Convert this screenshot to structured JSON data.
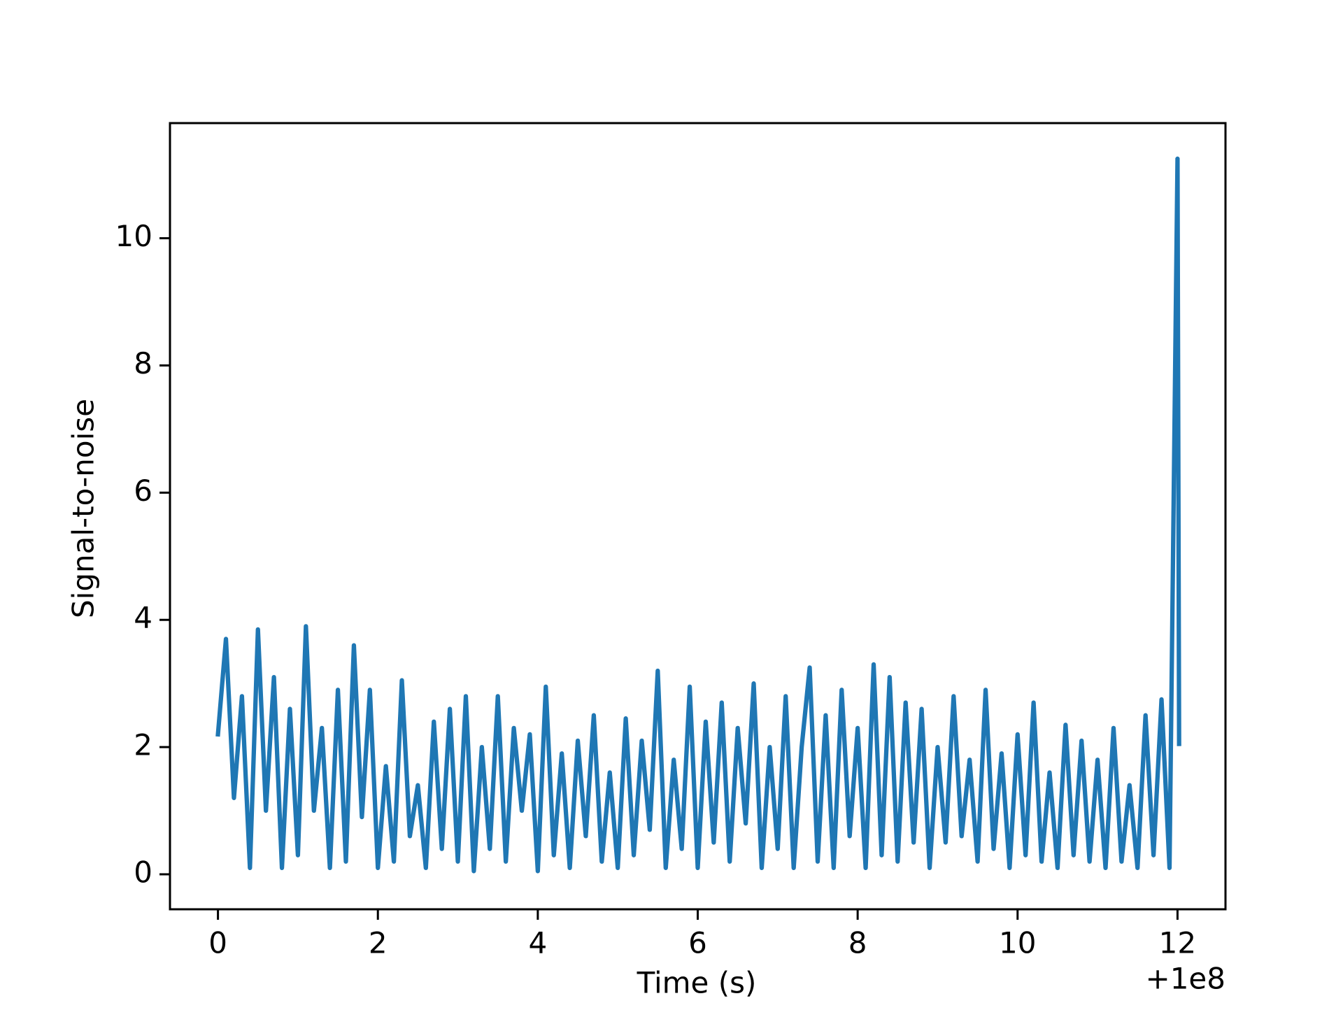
{
  "chart_data": {
    "type": "line",
    "xlabel": "Time (s)",
    "ylabel": "Signal-to-noise",
    "x_offset_text": "+1e8",
    "x": [
      0.0,
      0.1,
      0.2,
      0.3,
      0.4,
      0.5,
      0.6,
      0.7,
      0.8,
      0.9,
      1.0,
      1.1,
      1.2,
      1.3,
      1.4,
      1.5,
      1.6,
      1.7,
      1.8,
      1.9,
      2.0,
      2.1,
      2.2,
      2.3,
      2.4,
      2.5,
      2.6,
      2.7,
      2.8,
      2.9,
      3.0,
      3.1,
      3.2,
      3.3,
      3.4,
      3.5,
      3.6,
      3.7,
      3.8,
      3.9,
      4.0,
      4.1,
      4.2,
      4.3,
      4.4,
      4.5,
      4.6,
      4.7,
      4.8,
      4.9,
      5.0,
      5.1,
      5.2,
      5.3,
      5.4,
      5.5,
      5.6,
      5.7,
      5.8,
      5.9,
      6.0,
      6.1,
      6.2,
      6.3,
      6.4,
      6.5,
      6.6,
      6.7,
      6.8,
      6.9,
      7.0,
      7.1,
      7.2,
      7.3,
      7.4,
      7.5,
      7.6,
      7.7,
      7.8,
      7.9,
      8.0,
      8.1,
      8.2,
      8.3,
      8.4,
      8.5,
      8.6,
      8.7,
      8.8,
      8.9,
      9.0,
      9.1,
      9.2,
      9.3,
      9.4,
      9.5,
      9.6,
      9.7,
      9.8,
      9.9,
      10.0,
      10.1,
      10.2,
      10.3,
      10.4,
      10.5,
      10.6,
      10.7,
      10.8,
      10.9,
      11.0,
      11.1,
      11.2,
      11.3,
      11.4,
      11.5,
      11.6,
      11.7,
      11.8,
      11.9,
      12.0,
      12.02
    ],
    "series": [
      {
        "color": "#1f77b4",
        "values": [
          2.2,
          3.7,
          1.2,
          2.8,
          0.1,
          3.85,
          1.0,
          3.1,
          0.1,
          2.6,
          0.3,
          3.9,
          1.0,
          2.3,
          0.1,
          2.9,
          0.2,
          3.6,
          0.9,
          2.9,
          0.1,
          1.7,
          0.2,
          3.05,
          0.6,
          1.4,
          0.1,
          2.4,
          0.4,
          2.6,
          0.2,
          2.8,
          0.05,
          2.0,
          0.4,
          2.8,
          0.2,
          2.3,
          1.0,
          2.2,
          0.05,
          2.95,
          0.3,
          1.9,
          0.1,
          2.1,
          0.6,
          2.5,
          0.2,
          1.6,
          0.1,
          2.45,
          0.3,
          2.1,
          0.7,
          3.2,
          0.1,
          1.8,
          0.4,
          2.95,
          0.1,
          2.4,
          0.5,
          2.7,
          0.2,
          2.3,
          0.8,
          3.0,
          0.1,
          2.0,
          0.4,
          2.8,
          0.1,
          2.0,
          3.25,
          0.2,
          2.5,
          0.1,
          2.9,
          0.6,
          2.3,
          0.1,
          3.3,
          0.3,
          3.1,
          0.2,
          2.7,
          0.5,
          2.6,
          0.1,
          2.0,
          0.5,
          2.8,
          0.6,
          1.8,
          0.2,
          2.9,
          0.4,
          1.9,
          0.1,
          2.2,
          0.3,
          2.7,
          0.2,
          1.6,
          0.1,
          2.35,
          0.3,
          2.1,
          0.2,
          1.8,
          0.1,
          2.3,
          0.2,
          1.4,
          0.1,
          2.5,
          0.3,
          2.75,
          0.1,
          11.25,
          2.05
        ]
      }
    ],
    "xlim": [
      -0.6,
      12.6
    ],
    "ylim": [
      -0.55,
      11.81
    ],
    "xticks": [
      0,
      2,
      4,
      6,
      8,
      10,
      12
    ],
    "yticks": [
      0,
      2,
      4,
      6,
      8,
      10
    ]
  }
}
